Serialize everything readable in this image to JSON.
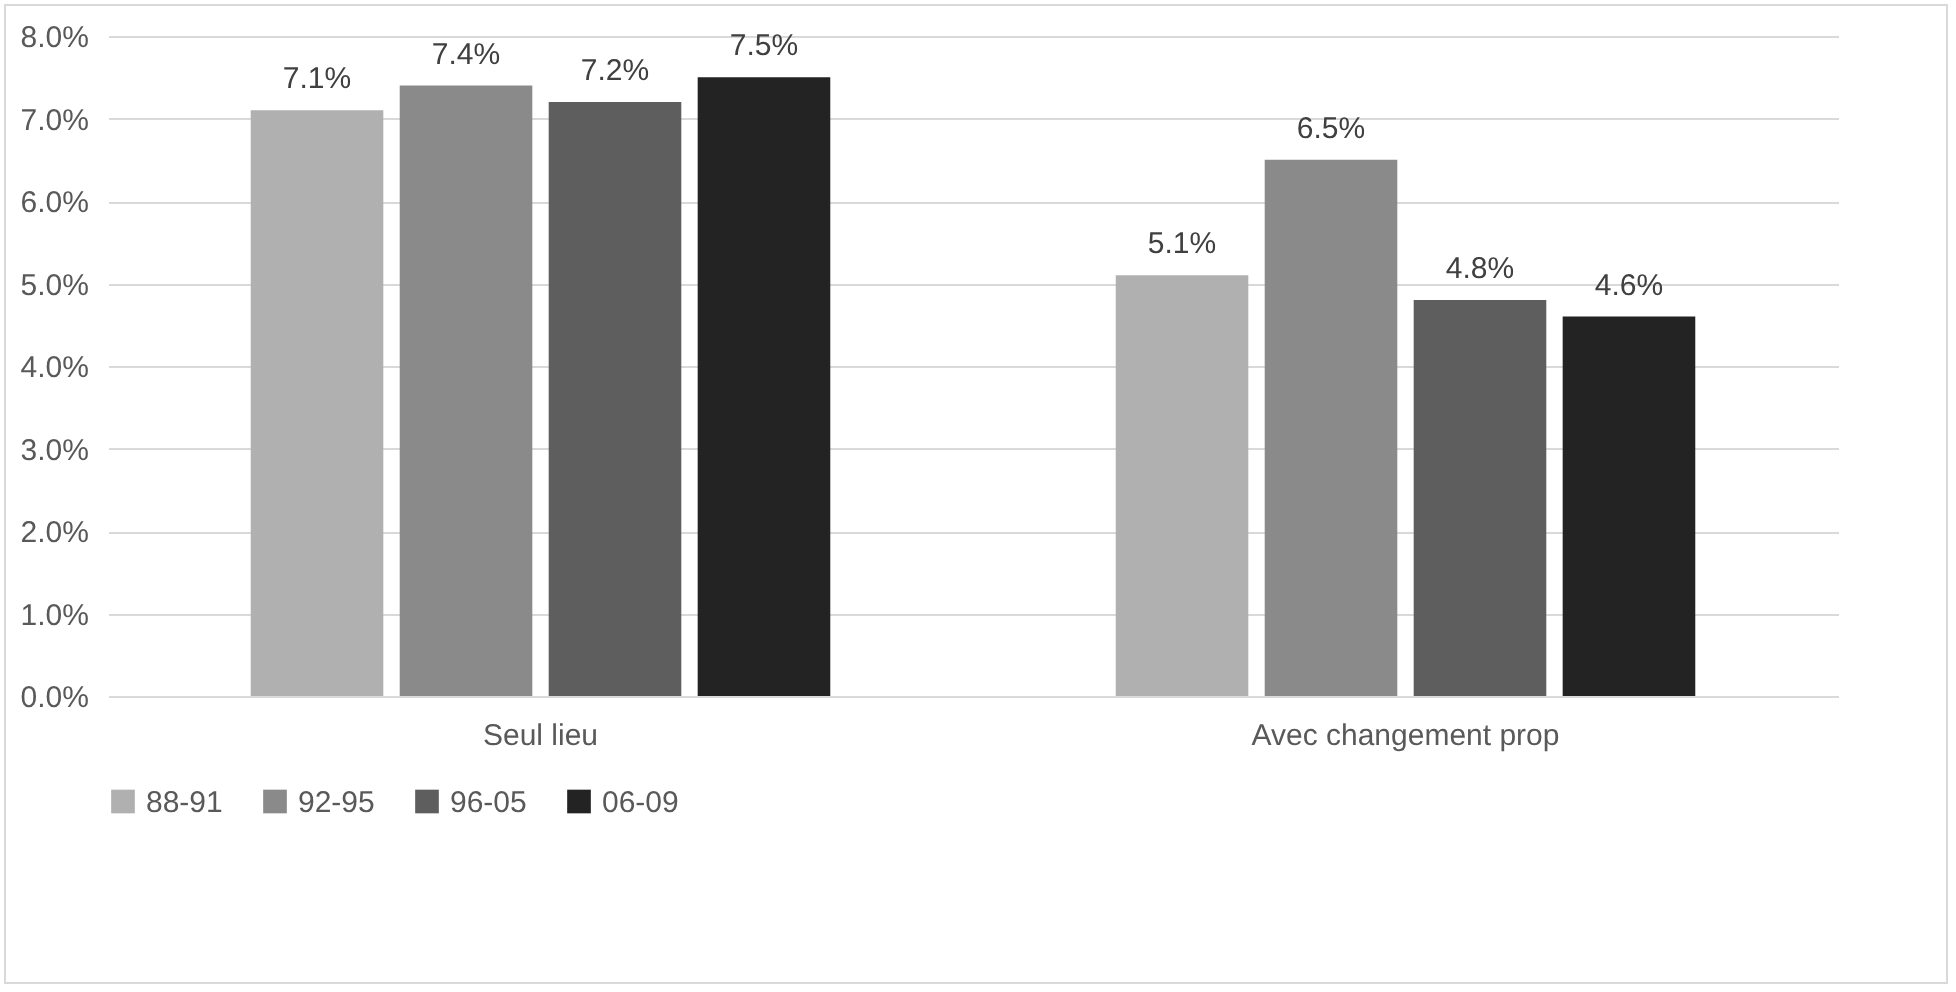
{
  "chart_data": {
    "type": "bar",
    "categories": [
      "Seul lieu",
      "Avec changement prop"
    ],
    "series": [
      {
        "name": "88-91",
        "color": "#b0b0b0",
        "values": [
          7.1,
          5.1
        ],
        "value_labels": [
          "7.1%",
          "5.1%"
        ]
      },
      {
        "name": "92-95",
        "color": "#8a8a8a",
        "values": [
          7.4,
          6.5
        ],
        "value_labels": [
          "7.4%",
          "6.5%"
        ]
      },
      {
        "name": "96-05",
        "color": "#5e5e5e",
        "values": [
          7.2,
          4.8
        ],
        "value_labels": [
          "7.2%",
          "4.8%"
        ]
      },
      {
        "name": "06-09",
        "color": "#232323",
        "values": [
          7.5,
          4.6
        ],
        "value_labels": [
          "7.5%",
          "4.6%"
        ]
      }
    ],
    "ylim": [
      0,
      8
    ],
    "yticks": [
      {
        "value": 0,
        "label": "0.0%"
      },
      {
        "value": 1,
        "label": "1.0%"
      },
      {
        "value": 2,
        "label": "2.0%"
      },
      {
        "value": 3,
        "label": "3.0%"
      },
      {
        "value": 4,
        "label": "4.0%"
      },
      {
        "value": 5,
        "label": "5.0%"
      },
      {
        "value": 6,
        "label": "6.0%"
      },
      {
        "value": 7,
        "label": "7.0%"
      },
      {
        "value": 8,
        "label": "8.0%"
      }
    ],
    "grid": "y",
    "legend": "bottom"
  }
}
